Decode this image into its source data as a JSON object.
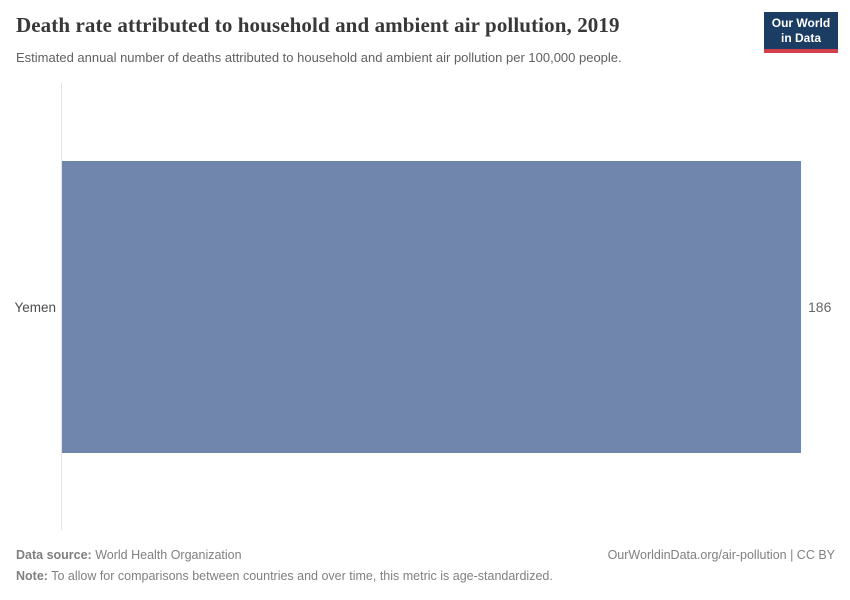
{
  "header": {
    "title": "Death rate attributed to household and ambient air pollution, 2019",
    "subtitle": "Estimated annual number of deaths attributed to household and ambient air pollution per 100,000 people.",
    "logo": {
      "line1": "Our World",
      "line2": "in Data",
      "bg_color": "#1c3d63",
      "accent_color": "#d1404a"
    }
  },
  "chart_data": {
    "type": "bar",
    "orientation": "horizontal",
    "categories": [
      "Yemen"
    ],
    "values": [
      186
    ],
    "title": "Death rate attributed to household and ambient air pollution, 2019",
    "subtitle": "Estimated annual number of deaths attributed to household and ambient air pollution per 100,000 people.",
    "xlabel": "",
    "ylabel": "",
    "xlim": [
      0,
      186
    ],
    "grid": false,
    "legend": false,
    "bar_color": "#7086ad",
    "axis_line_color": "#e3e3e3",
    "value_labels": [
      "186"
    ]
  },
  "footer": {
    "data_source_label": "Data source:",
    "data_source_value": " World Health Organization",
    "note_label": "Note:",
    "note_value": " To allow for comparisons between countries and over time, this metric is age-standardized.",
    "credit": "OurWorldinData.org/air-pollution | CC BY"
  }
}
